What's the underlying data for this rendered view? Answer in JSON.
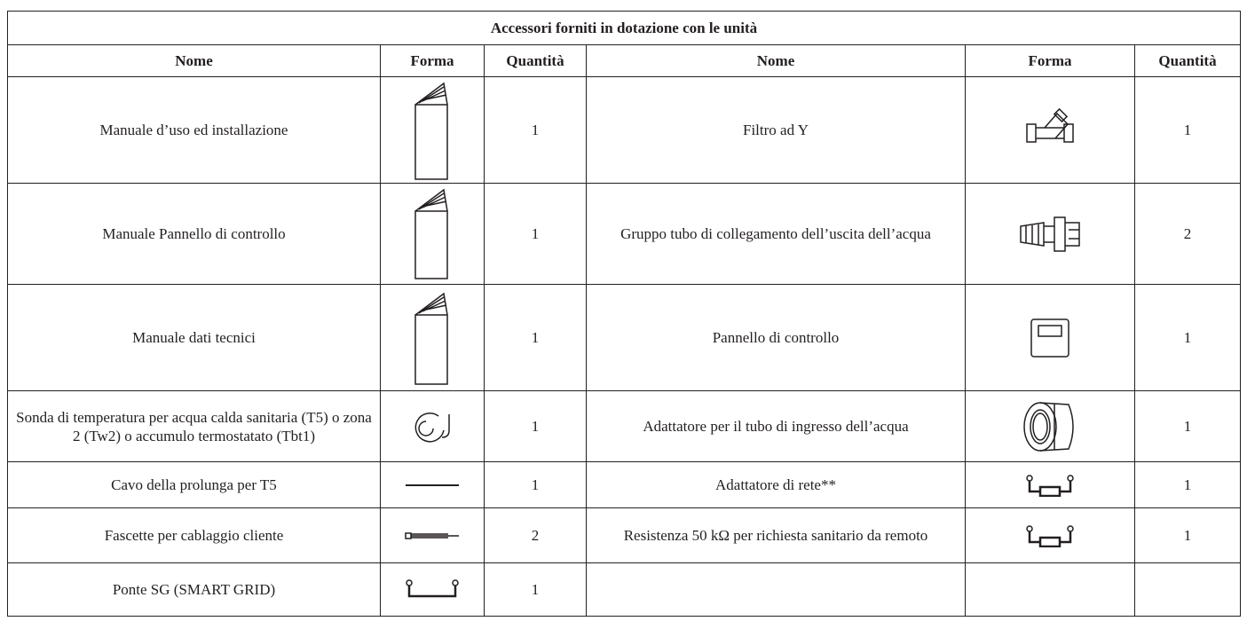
{
  "table": {
    "title": "Accessori forniti in dotazione con le unità",
    "header": [
      "Nome",
      "Forma",
      "Quantità",
      "Nome",
      "Forma",
      "Quantità"
    ],
    "rows": [
      {
        "left": {
          "name": "Manuale d’uso ed installazione",
          "quantity": 1
        },
        "right": {
          "name": "Filtro ad Y",
          "quantity": 1
        }
      },
      {
        "left": {
          "name": "Manuale Pannello di controllo",
          "quantity": 1
        },
        "right": {
          "name": "Gruppo tubo di collegamento dell’uscita dell’acqua",
          "quantity": 2
        }
      },
      {
        "left": {
          "name": "Manuale dati tecnici",
          "quantity": 1
        },
        "right": {
          "name": "Pannello di controllo",
          "quantity": 1
        }
      },
      {
        "left": {
          "name": "Sonda di temperatura per acqua calda sanitaria (T5) o zona 2 (Tw2) o accumulo termostatato (Tbt1)",
          "quantity": 1
        },
        "right": {
          "name": "Adattatore per il tubo di ingresso dell’acqua",
          "quantity": 1
        }
      },
      {
        "left": {
          "name": "Cavo della prolunga per T5",
          "quantity": 1
        },
        "right": {
          "name": "Adattatore di rete**",
          "quantity": 1
        }
      },
      {
        "left": {
          "name": "Fascette per cablaggio cliente",
          "quantity": 2
        },
        "right": {
          "name": "Resistenza 50 kΩ per richiesta sanitario da remoto",
          "quantity": 1
        }
      },
      {
        "left": {
          "name": "Ponte SG (SMART GRID)",
          "quantity": 1
        }
      }
    ]
  }
}
